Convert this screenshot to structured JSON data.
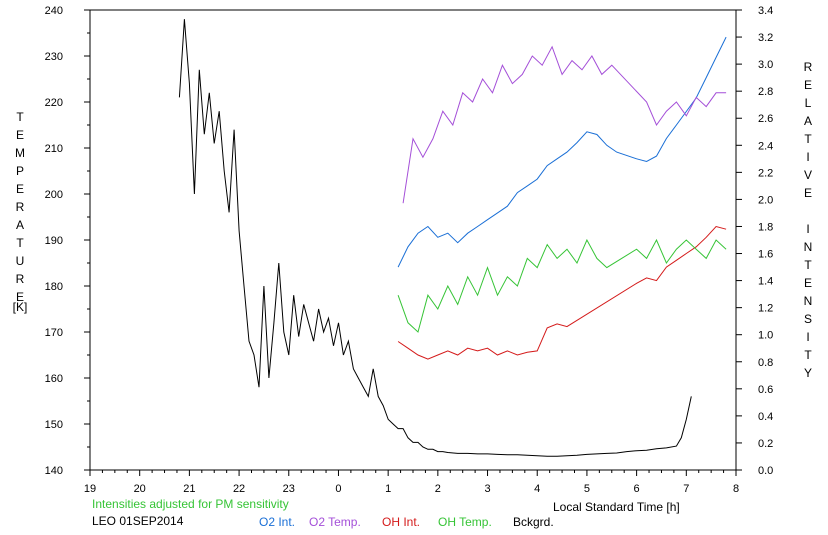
{
  "left_axis_label": "T\nE\nM\nP\nE\nR\nA\nT\nU\nR\nE",
  "left_axis_unit": "[K]",
  "right_axis_label": "R\nE\nL\nA\nT\nI\nV\nE\n\nI\nN\nT\nE\nN\nS\nI\nT\nY",
  "xlabel": "Local Standard Time [h]",
  "note": "Intensities adjusted for PM sensitivity",
  "station": "LEO 01SEP2014",
  "legend": {
    "o2_int": "O2 Int.",
    "o2_temp": "O2 Temp.",
    "oh_int": "OH Int.",
    "oh_temp": "OH Temp.",
    "bckgrd": "Bckgrd."
  },
  "colors": {
    "o2_int": "#1a6fd6",
    "o2_temp": "#a44fd8",
    "oh_int": "#d41a1a",
    "oh_temp": "#36c436",
    "bckgrd": "#000000",
    "note": "#36c436"
  },
  "chart_data": {
    "type": "line",
    "x_ticks": [
      "19",
      "20",
      "21",
      "22",
      "23",
      "0",
      "1",
      "2",
      "3",
      "4",
      "5",
      "6",
      "7",
      "8"
    ],
    "xlim": [
      19,
      32
    ],
    "y_left_ticks": [
      "140",
      "150",
      "160",
      "170",
      "180",
      "190",
      "200",
      "210",
      "220",
      "230",
      "240"
    ],
    "ylim_left": [
      140,
      240
    ],
    "y_right_ticks": [
      "0.0",
      "0.2",
      "0.4",
      "0.6",
      "0.8",
      "1.0",
      "1.2",
      "1.4",
      "1.6",
      "1.8",
      "2.0",
      "2.2",
      "2.4",
      "2.6",
      "2.8",
      "3.0",
      "3.2",
      "3.4"
    ],
    "ylim_right": [
      0,
      3.4
    ],
    "series": [
      {
        "name": "Bckgrd.",
        "key": "bckgrd",
        "axis": "left",
        "points": [
          [
            20.8,
            221
          ],
          [
            20.9,
            238
          ],
          [
            21.0,
            224
          ],
          [
            21.1,
            200
          ],
          [
            21.2,
            227
          ],
          [
            21.3,
            213
          ],
          [
            21.4,
            222
          ],
          [
            21.5,
            211
          ],
          [
            21.6,
            218
          ],
          [
            21.7,
            205
          ],
          [
            21.8,
            196
          ],
          [
            21.9,
            214
          ],
          [
            22.0,
            192
          ],
          [
            22.1,
            180
          ],
          [
            22.2,
            168
          ],
          [
            22.3,
            165
          ],
          [
            22.4,
            158
          ],
          [
            22.5,
            180
          ],
          [
            22.6,
            160
          ],
          [
            22.7,
            172
          ],
          [
            22.8,
            185
          ],
          [
            22.9,
            170
          ],
          [
            23.0,
            165
          ],
          [
            23.1,
            178
          ],
          [
            23.2,
            169
          ],
          [
            23.3,
            176
          ],
          [
            23.4,
            172
          ],
          [
            23.5,
            168
          ],
          [
            23.6,
            175
          ],
          [
            23.7,
            170
          ],
          [
            23.8,
            173
          ],
          [
            23.9,
            167
          ],
          [
            24.0,
            172
          ],
          [
            24.1,
            165
          ],
          [
            24.2,
            168
          ],
          [
            24.3,
            162
          ],
          [
            24.4,
            160
          ],
          [
            24.5,
            158
          ],
          [
            24.6,
            156
          ],
          [
            24.7,
            162
          ],
          [
            24.8,
            156
          ],
          [
            24.9,
            154
          ],
          [
            25.0,
            151
          ],
          [
            25.1,
            150
          ],
          [
            25.2,
            149
          ],
          [
            25.3,
            149
          ],
          [
            25.4,
            147
          ],
          [
            25.5,
            146
          ],
          [
            25.6,
            146
          ],
          [
            25.7,
            145
          ],
          [
            25.8,
            144.5
          ],
          [
            25.9,
            144.5
          ],
          [
            26.0,
            144
          ],
          [
            26.1,
            144
          ],
          [
            26.2,
            143.8
          ],
          [
            26.4,
            143.6
          ],
          [
            26.6,
            143.6
          ],
          [
            26.8,
            143.5
          ],
          [
            27.0,
            143.5
          ],
          [
            27.2,
            143.4
          ],
          [
            27.4,
            143.3
          ],
          [
            27.6,
            143.3
          ],
          [
            27.8,
            143.2
          ],
          [
            28.0,
            143.1
          ],
          [
            28.2,
            143.0
          ],
          [
            28.4,
            143.0
          ],
          [
            28.6,
            143.1
          ],
          [
            28.8,
            143.2
          ],
          [
            29.0,
            143.4
          ],
          [
            29.2,
            143.5
          ],
          [
            29.4,
            143.6
          ],
          [
            29.6,
            143.7
          ],
          [
            29.8,
            144.0
          ],
          [
            30.0,
            144.2
          ],
          [
            30.2,
            144.3
          ],
          [
            30.4,
            144.6
          ],
          [
            30.6,
            144.8
          ],
          [
            30.8,
            145.2
          ],
          [
            30.9,
            147
          ],
          [
            31.0,
            151
          ],
          [
            31.1,
            156
          ]
        ]
      },
      {
        "name": "O2 Int.",
        "key": "o2_int",
        "axis": "right",
        "points": [
          [
            25.2,
            1.5
          ],
          [
            25.4,
            1.65
          ],
          [
            25.6,
            1.75
          ],
          [
            25.8,
            1.8
          ],
          [
            26.0,
            1.72
          ],
          [
            26.2,
            1.75
          ],
          [
            26.4,
            1.68
          ],
          [
            26.6,
            1.75
          ],
          [
            26.8,
            1.8
          ],
          [
            27.0,
            1.85
          ],
          [
            27.2,
            1.9
          ],
          [
            27.4,
            1.95
          ],
          [
            27.6,
            2.05
          ],
          [
            27.8,
            2.1
          ],
          [
            28.0,
            2.15
          ],
          [
            28.2,
            2.25
          ],
          [
            28.4,
            2.3
          ],
          [
            28.6,
            2.35
          ],
          [
            28.8,
            2.42
          ],
          [
            29.0,
            2.5
          ],
          [
            29.2,
            2.48
          ],
          [
            29.4,
            2.4
          ],
          [
            29.6,
            2.35
          ],
          [
            30.0,
            2.3
          ],
          [
            30.2,
            2.28
          ],
          [
            30.4,
            2.32
          ],
          [
            30.6,
            2.45
          ],
          [
            30.8,
            2.55
          ],
          [
            31.0,
            2.65
          ],
          [
            31.2,
            2.75
          ],
          [
            31.4,
            2.9
          ],
          [
            31.6,
            3.05
          ],
          [
            31.8,
            3.2
          ]
        ]
      },
      {
        "name": "O2 Temp.",
        "key": "o2_temp",
        "axis": "left",
        "points": [
          [
            25.3,
            198
          ],
          [
            25.5,
            212
          ],
          [
            25.7,
            208
          ],
          [
            25.9,
            212
          ],
          [
            26.1,
            218
          ],
          [
            26.3,
            215
          ],
          [
            26.5,
            222
          ],
          [
            26.7,
            220
          ],
          [
            26.9,
            225
          ],
          [
            27.1,
            222
          ],
          [
            27.3,
            228
          ],
          [
            27.5,
            224
          ],
          [
            27.7,
            226
          ],
          [
            27.9,
            230
          ],
          [
            28.1,
            228
          ],
          [
            28.3,
            232
          ],
          [
            28.5,
            226
          ],
          [
            28.7,
            229
          ],
          [
            28.9,
            227
          ],
          [
            29.1,
            230
          ],
          [
            29.3,
            226
          ],
          [
            29.5,
            228
          ],
          [
            30.2,
            220
          ],
          [
            30.4,
            215
          ],
          [
            30.6,
            218
          ],
          [
            30.8,
            220
          ],
          [
            31.0,
            217
          ],
          [
            31.2,
            221
          ],
          [
            31.4,
            219
          ],
          [
            31.6,
            222
          ],
          [
            31.8,
            222
          ]
        ]
      },
      {
        "name": "OH Int.",
        "key": "oh_int",
        "axis": "right",
        "points": [
          [
            25.2,
            0.95
          ],
          [
            25.4,
            0.9
          ],
          [
            25.6,
            0.85
          ],
          [
            25.8,
            0.82
          ],
          [
            26.0,
            0.85
          ],
          [
            26.2,
            0.88
          ],
          [
            26.4,
            0.85
          ],
          [
            26.6,
            0.9
          ],
          [
            26.8,
            0.88
          ],
          [
            27.0,
            0.9
          ],
          [
            27.2,
            0.85
          ],
          [
            27.4,
            0.88
          ],
          [
            27.6,
            0.85
          ],
          [
            27.8,
            0.87
          ],
          [
            28.0,
            0.88
          ],
          [
            28.2,
            1.05
          ],
          [
            28.4,
            1.08
          ],
          [
            28.6,
            1.06
          ],
          [
            30.0,
            1.38
          ],
          [
            30.2,
            1.42
          ],
          [
            30.4,
            1.4
          ],
          [
            30.6,
            1.5
          ],
          [
            30.8,
            1.55
          ],
          [
            31.0,
            1.6
          ],
          [
            31.2,
            1.65
          ],
          [
            31.4,
            1.72
          ],
          [
            31.6,
            1.8
          ],
          [
            31.8,
            1.78
          ]
        ]
      },
      {
        "name": "OH Temp.",
        "key": "oh_temp",
        "axis": "left",
        "points": [
          [
            25.2,
            178
          ],
          [
            25.4,
            172
          ],
          [
            25.6,
            170
          ],
          [
            25.8,
            178
          ],
          [
            26.0,
            175
          ],
          [
            26.2,
            180
          ],
          [
            26.4,
            176
          ],
          [
            26.6,
            182
          ],
          [
            26.8,
            178
          ],
          [
            27.0,
            184
          ],
          [
            27.2,
            178
          ],
          [
            27.4,
            182
          ],
          [
            27.6,
            180
          ],
          [
            27.8,
            186
          ],
          [
            28.0,
            184
          ],
          [
            28.2,
            189
          ],
          [
            28.4,
            186
          ],
          [
            28.6,
            188
          ],
          [
            28.8,
            185
          ],
          [
            29.0,
            190
          ],
          [
            29.2,
            186
          ],
          [
            29.4,
            184
          ],
          [
            30.0,
            188
          ],
          [
            30.2,
            186
          ],
          [
            30.4,
            190
          ],
          [
            30.6,
            185
          ],
          [
            30.8,
            188
          ],
          [
            31.0,
            190
          ],
          [
            31.2,
            188
          ],
          [
            31.4,
            186
          ],
          [
            31.6,
            190
          ],
          [
            31.8,
            188
          ]
        ]
      }
    ]
  }
}
